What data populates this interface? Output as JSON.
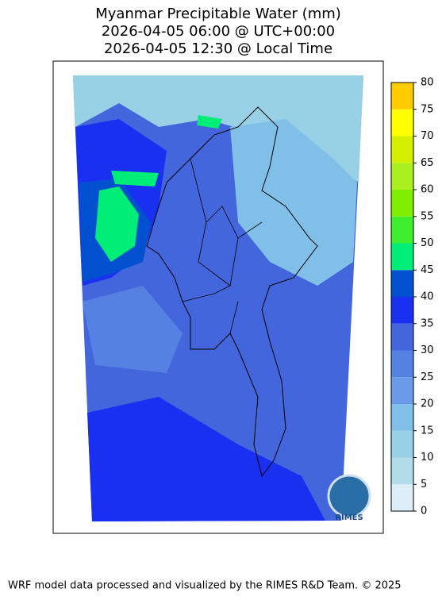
{
  "title": [
    "Myanmar Precipitable Water (mm)",
    "2026-04-05 06:00 @ UTC+00:00",
    "2026-04-05 12:30 @ Local Time"
  ],
  "colorbar": {
    "ticks": [
      0,
      5,
      10,
      15,
      20,
      25,
      30,
      35,
      40,
      45,
      50,
      55,
      60,
      65,
      70,
      75,
      80
    ],
    "colors": [
      "#ddeef8",
      "#b2dce8",
      "#98d0e6",
      "#80c0e8",
      "#6a9ae8",
      "#5582e2",
      "#4466dc",
      "#1a30f0",
      "#0050d0",
      "#00ee78",
      "#40ee30",
      "#80ee00",
      "#aaf020",
      "#d4f000",
      "#ffff00",
      "#ffcc00"
    ]
  },
  "logo_text": "RIMES",
  "footer": "WRF model data processed and visualized by the RIMES R&D Team. © 2025"
}
